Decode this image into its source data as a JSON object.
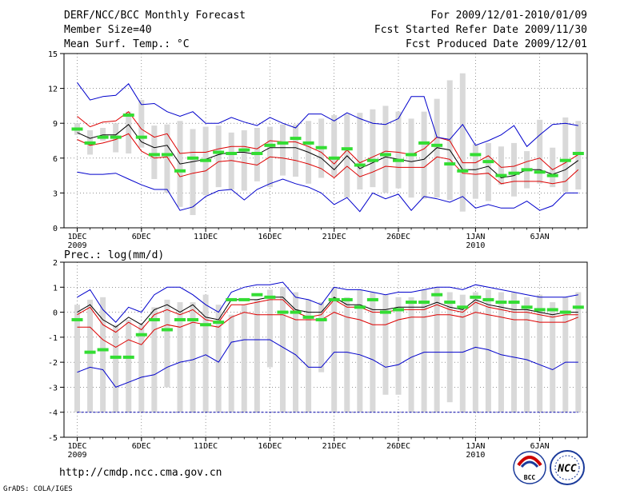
{
  "header": {
    "title": "DERF/NCC/BCC Monthly Forecast",
    "member": "Member Size=40",
    "variable": "Mean Surf. Temp.: °C",
    "period": "For 2009/12/01-2010/01/09",
    "start": "Fcst Started Refer Date 2009/11/30",
    "produced": "Fcst Produced Date 2009/12/01"
  },
  "footer": {
    "url": "http://cmdp.ncc.cma.gov.cn",
    "credit": "GrADS: COLA/IGES",
    "logo_bcc": "BCC",
    "logo_ncc": "NCC"
  },
  "colors": {
    "bar": "#d9d9d9",
    "mean": "#000000",
    "spread": "#dd0000",
    "range": "#0000cc",
    "obs": "#33dd33",
    "grid": "#555555"
  },
  "chart_data": [
    {
      "type": "line",
      "title": "Mean Surf. Temp.: °C",
      "ylim": [
        0,
        15
      ],
      "yticks": [
        0,
        3,
        6,
        9,
        12,
        15
      ],
      "x_tick_labels": [
        "1DEC",
        "6DEC",
        "11DEC",
        "16DEC",
        "21DEC",
        "26DEC",
        "1JAN",
        "6JAN"
      ],
      "x_year_labels": {
        "1DEC": "2009",
        "1JAN": "2010"
      },
      "x_tick_days": [
        1,
        6,
        11,
        16,
        21,
        26,
        32,
        37
      ],
      "days": 40,
      "bars": {
        "low": [
          8.0,
          6.3,
          7.5,
          6.5,
          6.4,
          6.9,
          4.2,
          3.0,
          1.8,
          1.1,
          2.8,
          3.5,
          3.3,
          3.2,
          4.0,
          3.5,
          4.5,
          4.4,
          3.8,
          4.3,
          4.4,
          2.6,
          3.3,
          3.5,
          3.0,
          3.4,
          2.6,
          2.5,
          2.6,
          2.4,
          1.4,
          2.5,
          2.3,
          3.7,
          2.7,
          3.4,
          3.8,
          3.5,
          3.1,
          3.3
        ],
        "high": [
          9.0,
          8.4,
          8.6,
          9.0,
          10.0,
          11.0,
          8.8,
          8.9,
          9.2,
          8.5,
          8.7,
          8.8,
          8.2,
          8.4,
          8.6,
          8.7,
          8.9,
          8.9,
          9.2,
          9.4,
          9.7,
          9.8,
          9.9,
          10.2,
          10.5,
          10.0,
          9.4,
          10.0,
          11.1,
          12.7,
          13.3,
          7.2,
          7.3,
          7.0,
          7.3,
          6.6,
          9.3,
          6.9,
          9.5,
          9.2
        ]
      },
      "series": [
        {
          "name": "Ensemble Mean",
          "values": [
            8.2,
            7.7,
            8.0,
            8.0,
            8.9,
            7.4,
            6.9,
            7.1,
            5.5,
            5.7,
            5.9,
            6.3,
            6.5,
            6.5,
            6.3,
            6.9,
            6.9,
            6.9,
            6.5,
            6.0,
            5.0,
            6.2,
            5.1,
            5.6,
            6.1,
            5.9,
            5.7,
            5.9,
            6.9,
            6.7,
            5.0,
            5.0,
            5.3,
            4.3,
            4.5,
            5.0,
            5.0,
            4.6,
            5.0,
            5.8
          ]
        },
        {
          "name": "Upper Spread",
          "values": [
            9.6,
            8.7,
            9.1,
            9.2,
            10.0,
            8.5,
            7.8,
            8.1,
            6.4,
            6.5,
            6.5,
            6.8,
            7.0,
            7.0,
            6.8,
            7.5,
            7.4,
            7.4,
            7.0,
            6.5,
            5.5,
            6.7,
            5.6,
            6.1,
            6.6,
            6.5,
            6.3,
            6.8,
            7.8,
            7.5,
            5.6,
            5.6,
            6.2,
            5.2,
            5.3,
            5.7,
            6.0,
            5.0,
            5.6,
            6.3
          ]
        },
        {
          "name": "Lower Spread",
          "values": [
            7.6,
            7.1,
            7.3,
            7.6,
            8.1,
            6.6,
            6.0,
            6.1,
            4.4,
            4.7,
            4.9,
            5.7,
            5.8,
            5.6,
            5.4,
            6.1,
            6.0,
            5.8,
            5.5,
            5.1,
            4.3,
            5.3,
            4.4,
            4.8,
            5.3,
            5.2,
            5.2,
            5.2,
            6.1,
            5.9,
            4.7,
            4.6,
            4.7,
            3.8,
            4.0,
            4.0,
            4.0,
            3.8,
            4.0,
            5.0
          ]
        },
        {
          "name": "Member Max",
          "values": [
            12.5,
            11.0,
            11.3,
            11.4,
            12.4,
            10.6,
            10.7,
            10.0,
            9.6,
            10.0,
            9.0,
            9.0,
            9.5,
            9.1,
            8.8,
            9.5,
            9.0,
            8.6,
            9.8,
            9.8,
            9.2,
            9.9,
            9.4,
            9.0,
            8.9,
            9.4,
            11.3,
            11.3,
            7.8,
            7.6,
            8.9,
            7.1,
            7.5,
            8.0,
            8.8,
            7.0,
            8.0,
            8.9,
            9.0,
            8.8
          ]
        },
        {
          "name": "Member Min",
          "values": [
            4.8,
            4.6,
            4.6,
            4.7,
            4.2,
            3.7,
            3.3,
            3.3,
            1.5,
            1.8,
            2.7,
            3.2,
            3.3,
            2.4,
            3.3,
            3.8,
            4.2,
            3.8,
            3.5,
            3.0,
            2.0,
            2.6,
            1.4,
            3.0,
            2.5,
            2.9,
            1.5,
            2.7,
            2.5,
            2.2,
            2.7,
            1.7,
            2.0,
            1.7,
            1.7,
            2.3,
            1.5,
            1.9,
            3.0,
            3.0
          ]
        }
      ],
      "obs": [
        8.5,
        7.3,
        7.8,
        7.8,
        9.7,
        7.8,
        6.3,
        6.3,
        4.9,
        6.0,
        5.8,
        6.5,
        6.4,
        6.7,
        6.4,
        7.1,
        7.3,
        7.7,
        7.3,
        6.9,
        6.0,
        6.8,
        5.4,
        5.8,
        6.3,
        5.8,
        6.3,
        7.3,
        7.1,
        5.5,
        4.9,
        6.3,
        5.7,
        4.5,
        4.7,
        5.0,
        4.8,
        4.5,
        5.8,
        6.4
      ]
    },
    {
      "type": "line",
      "title": "Prec.: log(mm/d)",
      "ylim": [
        -5,
        2
      ],
      "yticks": [
        -5,
        -4,
        -3,
        -2,
        -1,
        0,
        1,
        2
      ],
      "x_tick_labels": [
        "1DEC",
        "6DEC",
        "11DEC",
        "16DEC",
        "21DEC",
        "26DEC",
        "1JAN",
        "6JAN"
      ],
      "x_year_labels": {
        "1DEC": "2009",
        "1JAN": "2010"
      },
      "x_tick_days": [
        1,
        6,
        11,
        16,
        21,
        26,
        32,
        37
      ],
      "days": 40,
      "bars": {
        "low": [
          -4.0,
          -4.0,
          -4.0,
          -4.0,
          -4.0,
          -4.0,
          -4.0,
          -3.0,
          -4.0,
          -4.0,
          -4.0,
          -4.0,
          -4.0,
          -4.0,
          -4.0,
          -2.2,
          -4.0,
          -4.0,
          -4.0,
          -2.4,
          -4.0,
          -4.0,
          -4.0,
          -4.0,
          -3.3,
          -3.3,
          -4.0,
          -4.0,
          -4.0,
          -3.6,
          -4.0,
          -4.0,
          -4.0,
          -4.0,
          -4.0,
          -4.0,
          -4.0,
          -4.0,
          -4.0,
          -4.0
        ],
        "high": [
          0.3,
          0.5,
          0.6,
          -0.5,
          -0.3,
          -0.5,
          0.2,
          0.5,
          0.4,
          0.4,
          0.7,
          0.3,
          -0.1,
          0.3,
          0.5,
          0.9,
          1.0,
          0.8,
          0.5,
          0.4,
          1.0,
          0.6,
          0.9,
          0.8,
          0.7,
          0.6,
          0.6,
          0.9,
          1.0,
          0.8,
          0.7,
          0.8,
          0.9,
          0.8,
          0.8,
          0.6,
          0.7,
          0.4,
          0.6,
          0.8
        ]
      },
      "series": [
        {
          "name": "Ensemble Mean",
          "values": [
            0.0,
            0.3,
            -0.3,
            -0.6,
            -0.2,
            -0.5,
            0.1,
            0.3,
            0.0,
            0.3,
            -0.2,
            -0.3,
            0.5,
            0.5,
            0.5,
            0.6,
            0.6,
            0.1,
            0.0,
            0.0,
            0.6,
            0.3,
            0.3,
            0.1,
            0.1,
            0.2,
            0.2,
            0.2,
            0.4,
            0.2,
            0.1,
            0.5,
            0.3,
            0.2,
            0.1,
            0.1,
            0.0,
            -0.1,
            0.0,
            0.0
          ]
        },
        {
          "name": "Upper Spread",
          "values": [
            -0.1,
            0.2,
            -0.5,
            -0.8,
            -0.4,
            -0.7,
            -0.1,
            0.1,
            -0.1,
            0.1,
            -0.3,
            -0.4,
            0.3,
            0.3,
            0.4,
            0.5,
            0.5,
            0.0,
            -0.2,
            -0.1,
            0.5,
            0.2,
            0.2,
            0.0,
            0.0,
            0.1,
            0.1,
            0.1,
            0.3,
            0.1,
            0.0,
            0.4,
            0.2,
            0.1,
            0.0,
            0.0,
            -0.1,
            -0.2,
            -0.1,
            -0.1
          ]
        },
        {
          "name": "Lower Spread",
          "values": [
            -0.6,
            -0.6,
            -1.1,
            -1.4,
            -1.1,
            -1.3,
            -0.7,
            -0.5,
            -0.6,
            -0.4,
            -0.5,
            -0.6,
            -0.2,
            0.0,
            -0.1,
            -0.1,
            -0.1,
            -0.3,
            -0.3,
            -0.3,
            0.0,
            -0.2,
            -0.3,
            -0.5,
            -0.5,
            -0.3,
            -0.2,
            -0.2,
            -0.1,
            -0.1,
            -0.2,
            0.0,
            -0.1,
            -0.2,
            -0.3,
            -0.3,
            -0.4,
            -0.4,
            -0.4,
            -0.2
          ]
        },
        {
          "name": "Member Max",
          "values": [
            0.6,
            0.9,
            0.1,
            -0.4,
            0.2,
            0.0,
            0.7,
            1.0,
            1.0,
            0.7,
            0.3,
            0.0,
            0.8,
            1.0,
            1.1,
            1.1,
            1.2,
            0.6,
            0.5,
            0.3,
            1.0,
            0.9,
            0.9,
            0.8,
            0.7,
            0.8,
            0.8,
            0.9,
            1.0,
            1.0,
            0.9,
            1.1,
            1.0,
            0.9,
            0.8,
            0.7,
            0.6,
            0.6,
            0.6,
            0.7
          ]
        },
        {
          "name": "Member Min",
          "values": [
            -2.4,
            -2.2,
            -2.3,
            -3.0,
            -2.8,
            -2.6,
            -2.5,
            -2.2,
            -2.0,
            -1.9,
            -1.7,
            -2.0,
            -1.2,
            -1.1,
            -1.1,
            -1.1,
            -1.4,
            -1.7,
            -2.2,
            -2.2,
            -1.6,
            -1.6,
            -1.7,
            -1.9,
            -2.2,
            -2.1,
            -1.8,
            -1.6,
            -1.6,
            -1.6,
            -1.6,
            -1.4,
            -1.5,
            -1.7,
            -1.8,
            -1.9,
            -2.1,
            -2.3,
            -2.0,
            -2.0
          ]
        }
      ],
      "obs": [
        -0.3,
        -1.6,
        -1.5,
        -1.8,
        -1.8,
        -0.9,
        -0.3,
        -0.7,
        -0.3,
        -0.3,
        -0.5,
        -0.4,
        0.5,
        0.5,
        0.7,
        0.6,
        0.0,
        0.0,
        -0.2,
        -0.3,
        0.5,
        0.5,
        0.2,
        0.5,
        0.0,
        0.1,
        0.4,
        0.4,
        0.7,
        0.4,
        0.2,
        0.6,
        0.5,
        0.4,
        0.4,
        0.2,
        0.1,
        0.1,
        0.0,
        0.2
      ]
    }
  ]
}
